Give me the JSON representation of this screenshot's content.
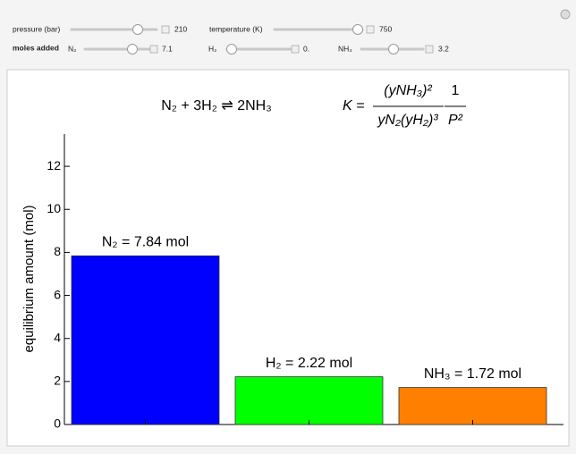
{
  "controls": {
    "pressure": {
      "label": "pressure (bar)",
      "value": "210"
    },
    "temperature": {
      "label": "temperature (K)",
      "value": "750"
    },
    "moles_added": "moles added",
    "n2": {
      "label": "N₂",
      "value": "7.1"
    },
    "h2": {
      "label": "H₂",
      "value": "0."
    },
    "nh3": {
      "label": "NH₃",
      "value": "3.2"
    }
  },
  "equation": {
    "reaction": "N₂ + 3H₂ ⇌ 2NH₃",
    "k_lhs": "K =",
    "numerator": "(yNH₃)²",
    "denominator": "yN₂(yH₂)³",
    "factor_numerator": "1",
    "factor_denominator": "P²"
  },
  "chart_data": {
    "type": "bar",
    "ylabel": "equilibrium amount (mol)",
    "categories": [
      "N₂",
      "H₂",
      "NH₃"
    ],
    "values": [
      7.84,
      2.22,
      1.72
    ],
    "value_labels": [
      "N₂ = 7.84 mol",
      "H₂ = 2.22 mol",
      "NH₃ = 1.72 mol"
    ],
    "colors": [
      "#0000ff",
      "#00ff00",
      "#ff8000"
    ],
    "ylim": [
      0,
      13.5
    ],
    "yticks": [
      0,
      2,
      4,
      6,
      8,
      10,
      12
    ]
  }
}
